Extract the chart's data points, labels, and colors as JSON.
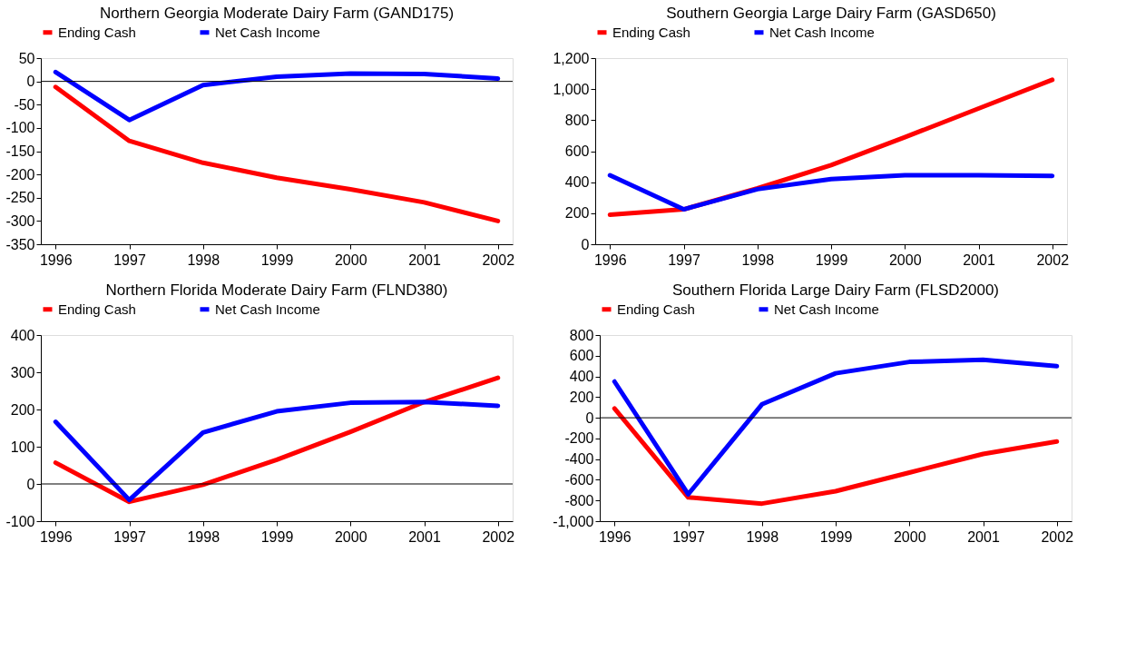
{
  "chart_data": [
    {
      "type": "line",
      "title": "Northern Georgia Moderate Dairy Farm (GAND175)",
      "categories": [
        "1996",
        "1997",
        "1998",
        "1999",
        "2000",
        "2001",
        "2002"
      ],
      "series": [
        {
          "name": "Ending Cash",
          "color": "#ff0000",
          "values": [
            -12,
            -128,
            -175,
            -207,
            -232,
            -260,
            -300
          ]
        },
        {
          "name": "Net Cash Income",
          "color": "#0000ff",
          "values": [
            20,
            -83,
            -8,
            10,
            17,
            16,
            6
          ]
        }
      ],
      "ylim": [
        -350,
        50
      ],
      "yticks": [
        -350,
        -300,
        -250,
        -200,
        -150,
        -100,
        -50,
        0,
        50
      ],
      "grid": false,
      "legend": "top",
      "marker": "none",
      "line_style": "solid",
      "ref_lines": [
        {
          "axis": "y",
          "value": 0,
          "label": null,
          "color": "#000000"
        }
      ]
    },
    {
      "type": "line",
      "title": "Southern Georgia Large Dairy Farm (GASD650)",
      "categories": [
        "1996",
        "1997",
        "1998",
        "1999",
        "2000",
        "2001",
        "2002"
      ],
      "series": [
        {
          "name": "Ending Cash",
          "color": "#ff0000",
          "values": [
            190,
            225,
            360,
            510,
            690,
            875,
            1060
          ]
        },
        {
          "name": "Net Cash Income",
          "color": "#0000ff",
          "values": [
            445,
            225,
            355,
            420,
            445,
            445,
            440
          ]
        }
      ],
      "ylim": [
        0,
        1200
      ],
      "yticks": [
        0,
        200,
        400,
        600,
        800,
        {
          "value": 1000,
          "label": "1,000"
        },
        {
          "value": 1200,
          "label": "1,200"
        }
      ],
      "grid": false,
      "legend": "top",
      "marker": "none",
      "line_style": "solid"
    },
    {
      "type": "line",
      "title": "Northern Florida Moderate Dairy Farm (FLND380)",
      "categories": [
        "1996",
        "1997",
        "1998",
        "1999",
        "2000",
        "2001",
        "2002"
      ],
      "series": [
        {
          "name": "Ending Cash",
          "color": "#ff0000",
          "values": [
            57,
            -48,
            -2,
            65,
            140,
            220,
            285
          ]
        },
        {
          "name": "Net Cash Income",
          "color": "#0000ff",
          "values": [
            167,
            -43,
            138,
            195,
            218,
            220,
            210
          ]
        }
      ],
      "ylim": [
        -100,
        400
      ],
      "yticks": [
        -100,
        0,
        100,
        200,
        300,
        400
      ],
      "grid": false,
      "legend": "top",
      "marker": "none",
      "line_style": "solid",
      "ref_lines": [
        {
          "axis": "y",
          "value": 0,
          "label": null,
          "color": "#000000"
        }
      ]
    },
    {
      "type": "line",
      "title": "Southern Florida Large Dairy Farm (FLSD2000)",
      "categories": [
        "1996",
        "1997",
        "1998",
        "1999",
        "2000",
        "2001",
        "2002"
      ],
      "series": [
        {
          "name": "Ending Cash",
          "color": "#ff0000",
          "values": [
            90,
            -770,
            -830,
            -710,
            -530,
            -350,
            -230
          ]
        },
        {
          "name": "Net Cash Income",
          "color": "#0000ff",
          "values": [
            350,
            -740,
            130,
            430,
            540,
            560,
            500
          ]
        }
      ],
      "ylim": [
        -1000,
        800
      ],
      "yticks": [
        {
          "value": -1000,
          "label": "-1,000"
        },
        -800,
        -600,
        -400,
        -200,
        0,
        200,
        400,
        600,
        800
      ],
      "grid": false,
      "legend": "top",
      "marker": "none",
      "line_style": "solid",
      "ref_lines": [
        {
          "axis": "y",
          "value": 0,
          "label": null,
          "color": "#000000"
        }
      ]
    }
  ]
}
